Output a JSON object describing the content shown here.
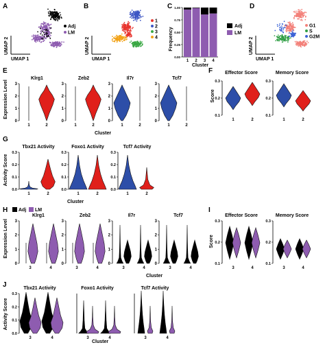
{
  "colors": {
    "adj": "#000000",
    "lm": "#8e5cb0",
    "red": "#e0201b",
    "blue": "#2d4ea8",
    "cluster1": "#e8332d",
    "cluster2": "#3d56c4",
    "cluster3": "#3aa844",
    "cluster4": "#f2a319",
    "g1": "#f3817a",
    "s": "#2f9e44",
    "g2m": "#3b63d6"
  },
  "panelA": {
    "letter": "A",
    "xlabel": "UMAP 1",
    "ylabel": "UMAP 2",
    "legend": [
      "Adj",
      "LM"
    ]
  },
  "panelB": {
    "letter": "B",
    "xlabel": "UMAP 1",
    "ylabel": "UMAP 2",
    "legend": [
      "1",
      "2",
      "3",
      "4"
    ]
  },
  "panelC": {
    "letter": "C",
    "ylabel": "Frequency",
    "xlabel": "Cluster",
    "yticks": [
      "0.00",
      "0.25",
      "0.50",
      "0.75",
      "1.00"
    ],
    "legend": [
      "Adj",
      "LM"
    ],
    "chart_data": {
      "type": "bar",
      "categories": [
        "1",
        "2",
        "3",
        "4"
      ],
      "series": [
        {
          "name": "LM",
          "values": [
            0.96,
            0.99,
            0.86,
            0.88
          ]
        },
        {
          "name": "Adj",
          "values": [
            0.04,
            0.01,
            0.14,
            0.12
          ]
        }
      ],
      "xlabel": "Cluster",
      "ylabel": "Frequency",
      "ylim": [
        0,
        1
      ]
    }
  },
  "panelD": {
    "letter": "D",
    "xlabel": "UMAP 1",
    "ylabel": "UMAP 2",
    "legend": [
      "G1",
      "S",
      "G2M"
    ]
  },
  "panelE": {
    "letter": "E",
    "ylabel": "Expression Level",
    "xlabel": "Cluster",
    "subplots": [
      "Klrg1",
      "Zeb2",
      "Il7r",
      "Tcf7"
    ],
    "yticks": [
      "0",
      "1",
      "2",
      "3"
    ],
    "xticks": [
      "1",
      "2"
    ]
  },
  "panelF": {
    "letter": "F",
    "ylabel": "Score",
    "subplots": [
      "Effector Score",
      "Memory Score"
    ],
    "yticks": [
      "0.1",
      "0.2",
      "0.3"
    ],
    "xticks": [
      "1",
      "2"
    ]
  },
  "panelG": {
    "letter": "G",
    "ylabel": "Activity Score",
    "xlabel": "Cluster",
    "subplots": [
      "Tbx21 Activity",
      "Foxo1 Activity",
      "Tcf7 Activity"
    ],
    "yticks": [
      "0.0",
      "0.1",
      "0.2",
      "0.3"
    ],
    "xticks": [
      "1",
      "2"
    ]
  },
  "panelH": {
    "letter": "H",
    "legend": [
      "Adj",
      "LM"
    ],
    "ylabel": "Expression Level",
    "xlabel": "Cluster",
    "subplots": [
      "Klrg1",
      "Zeb2",
      "Il7r",
      "Tcf7"
    ],
    "yticks": [
      "0",
      "1",
      "2",
      "3"
    ],
    "xticks": [
      "3",
      "4"
    ]
  },
  "panelI": {
    "letter": "I",
    "ylabel": "Score",
    "subplots": [
      "Effector Score",
      "Memory Score"
    ],
    "yticks": [
      "0.1",
      "0.2",
      "0.3"
    ],
    "xticks": [
      "3",
      "4"
    ]
  },
  "panelJ": {
    "letter": "J",
    "ylabel": "Activity Score",
    "xlabel": "Cluster",
    "subplots": [
      "Tbx21 Activity",
      "Foxo1 Activity",
      "Tcf7 Activity"
    ],
    "yticks": [
      "0.0",
      "0.1",
      "0.2",
      "0.3"
    ],
    "xticks": [
      "3",
      "4"
    ]
  }
}
